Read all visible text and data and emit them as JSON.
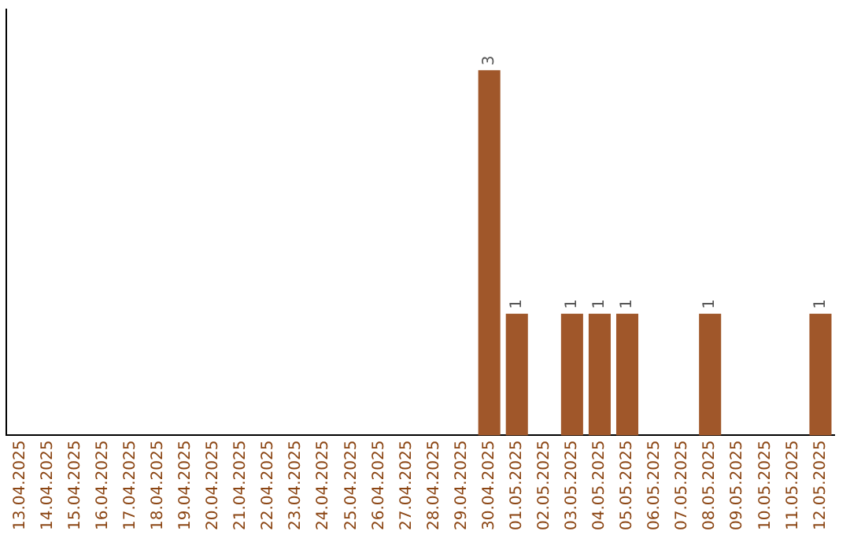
{
  "chart_data": {
    "type": "bar",
    "categories": [
      "13.04.2025",
      "14.04.2025",
      "15.04.2025",
      "16.04.2025",
      "17.04.2025",
      "18.04.2025",
      "19.04.2025",
      "20.04.2025",
      "21.04.2025",
      "22.04.2025",
      "23.04.2025",
      "24.04.2025",
      "25.04.2025",
      "26.04.2025",
      "27.04.2025",
      "28.04.2025",
      "29.04.2025",
      "30.04.2025",
      "01.05.2025",
      "02.05.2025",
      "03.05.2025",
      "04.05.2025",
      "05.05.2025",
      "06.05.2025",
      "07.05.2025",
      "08.05.2025",
      "09.05.2025",
      "10.05.2025",
      "11.05.2025",
      "12.05.2025"
    ],
    "values": [
      null,
      null,
      null,
      null,
      null,
      null,
      null,
      null,
      null,
      null,
      null,
      null,
      null,
      null,
      null,
      null,
      null,
      3,
      1,
      null,
      1,
      1,
      1,
      null,
      null,
      1,
      null,
      null,
      null,
      1
    ],
    "value_labels": [
      null,
      null,
      null,
      null,
      null,
      null,
      null,
      null,
      null,
      null,
      null,
      null,
      null,
      null,
      null,
      null,
      null,
      "3",
      "1",
      null,
      "1",
      "1",
      "1",
      null,
      null,
      "1",
      null,
      null,
      null,
      "1"
    ],
    "color": "#a0572a",
    "grid": false,
    "legend": false,
    "tick_labels": "x"
  }
}
